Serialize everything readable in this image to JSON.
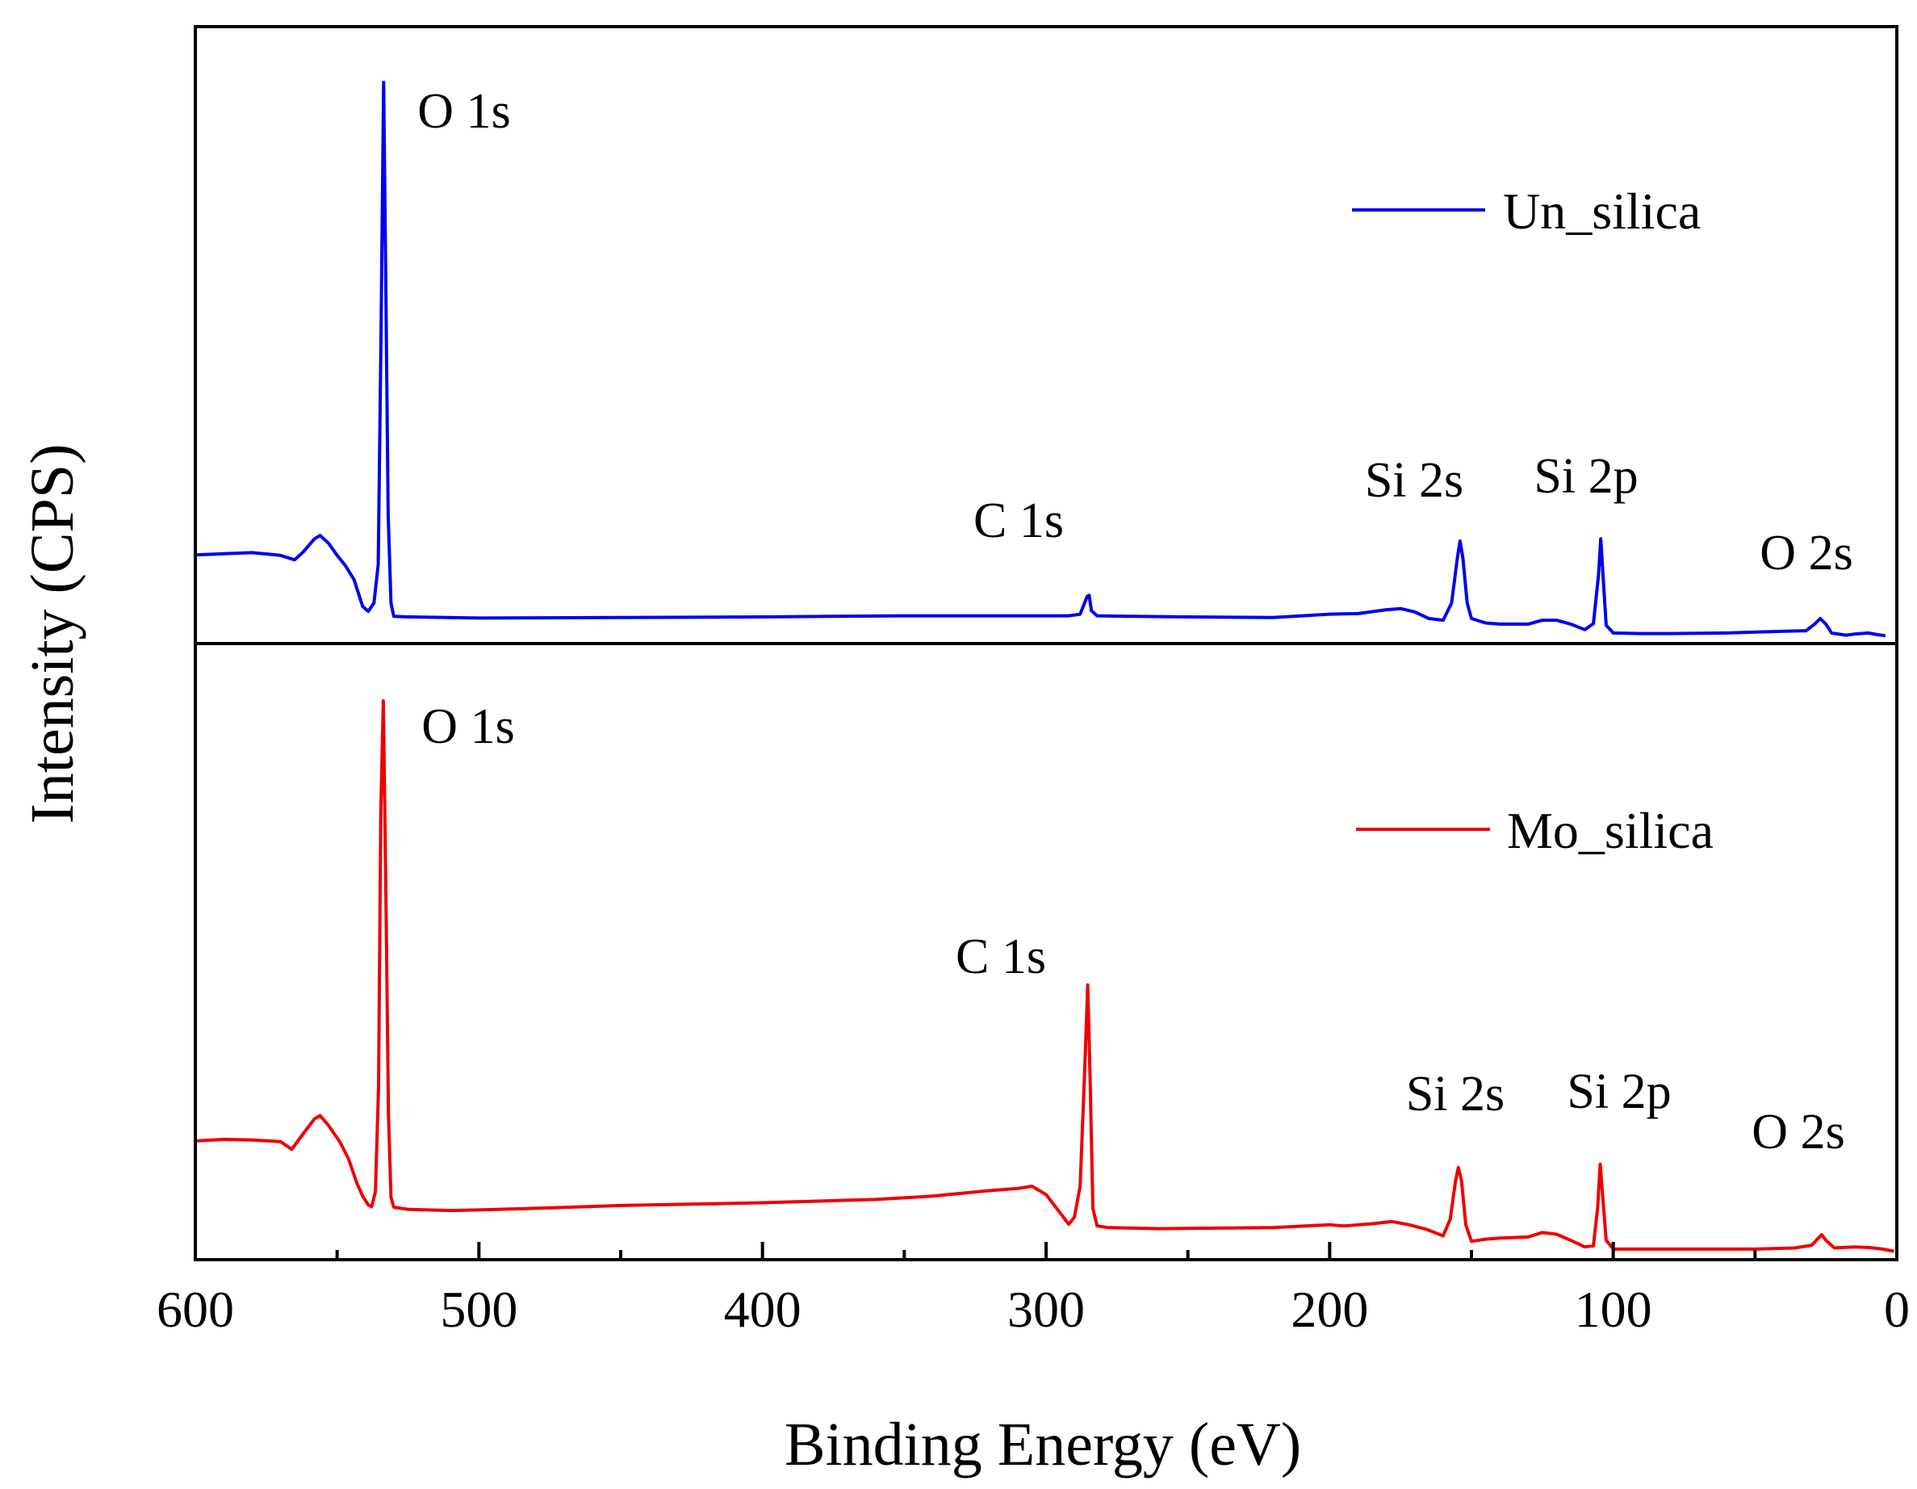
{
  "chart_data": {
    "type": "line",
    "title": "",
    "xlabel": "Binding Energy (eV)",
    "ylabel": "Intensity (CPS)",
    "xlim": [
      600,
      0
    ],
    "x_reversed": true,
    "xticks": [
      600,
      500,
      400,
      300,
      200,
      100,
      0
    ],
    "xtick_labels": [
      "600",
      "500",
      "400",
      "300",
      "200",
      "100",
      "0"
    ],
    "y_ticks_shown": false,
    "grid": false,
    "layout": "stacked-two-panel",
    "series": [
      {
        "name": "Un_silica",
        "color": "#0000ee",
        "panel": "top",
        "ylim": [
          0,
          100
        ],
        "peak_labels": [
          {
            "text": "O 1s",
            "x": 533
          },
          {
            "text": "C 1s",
            "x": 285
          },
          {
            "text": "Si 2s",
            "x": 154
          },
          {
            "text": "Si 2p",
            "x": 103
          },
          {
            "text": "O 2s",
            "x": 26
          }
        ],
        "points": [
          [
            600,
            14.7
          ],
          [
            590,
            14.9
          ],
          [
            580,
            15.1
          ],
          [
            570,
            14.6
          ],
          [
            565,
            13.8
          ],
          [
            562,
            15.2
          ],
          [
            558,
            17.6
          ],
          [
            556,
            18.2
          ],
          [
            553,
            16.8
          ],
          [
            550,
            14.6
          ],
          [
            547,
            12.7
          ],
          [
            544,
            10.2
          ],
          [
            541,
            5.4
          ],
          [
            539,
            4.5
          ],
          [
            537,
            6.0
          ],
          [
            535.5,
            13.0
          ],
          [
            534.5,
            55.0
          ],
          [
            533.6,
            100
          ],
          [
            532.8,
            62.0
          ],
          [
            532,
            22.0
          ],
          [
            531,
            6.0
          ],
          [
            530,
            3.6
          ],
          [
            525,
            3.5
          ],
          [
            500,
            3.3
          ],
          [
            450,
            3.4
          ],
          [
            400,
            3.5
          ],
          [
            350,
            3.7
          ],
          [
            300,
            3.7
          ],
          [
            292,
            3.7
          ],
          [
            288,
            4.0
          ],
          [
            285.5,
            7.2
          ],
          [
            284.8,
            7.4
          ],
          [
            284,
            4.6
          ],
          [
            282,
            3.7
          ],
          [
            270,
            3.6
          ],
          [
            250,
            3.5
          ],
          [
            220,
            3.4
          ],
          [
            200,
            4.0
          ],
          [
            190,
            4.1
          ],
          [
            180,
            4.8
          ],
          [
            175,
            5.0
          ],
          [
            170,
            4.4
          ],
          [
            165,
            3.2
          ],
          [
            160,
            2.9
          ],
          [
            157,
            6.0
          ],
          [
            155,
            14.0
          ],
          [
            154,
            17.2
          ],
          [
            153,
            14.0
          ],
          [
            151.5,
            6.0
          ],
          [
            150,
            3.2
          ],
          [
            145,
            2.4
          ],
          [
            140,
            2.2
          ],
          [
            130,
            2.2
          ],
          [
            125,
            2.9
          ],
          [
            120,
            2.9
          ],
          [
            115,
            2.2
          ],
          [
            110,
            1.2
          ],
          [
            107,
            2.3
          ],
          [
            105.2,
            11.0
          ],
          [
            104.4,
            17.6
          ],
          [
            103.6,
            11.0
          ],
          [
            102.5,
            2.0
          ],
          [
            100,
            0.6
          ],
          [
            90,
            0.5
          ],
          [
            80,
            0.5
          ],
          [
            60,
            0.6
          ],
          [
            40,
            0.9
          ],
          [
            32,
            1.0
          ],
          [
            29,
            2.2
          ],
          [
            27,
            3.2
          ],
          [
            25,
            2.2
          ],
          [
            23,
            0.6
          ],
          [
            18,
            0.2
          ],
          [
            15,
            0.4
          ],
          [
            10,
            0.6
          ],
          [
            7,
            0.3
          ],
          [
            4,
            0.1
          ]
        ]
      },
      {
        "name": "Mo_silica",
        "color": "#ee0000",
        "panel": "bottom",
        "ylim": [
          0,
          100
        ],
        "peak_labels": [
          {
            "text": "O 1s",
            "x": 533
          },
          {
            "text": "C 1s",
            "x": 285
          },
          {
            "text": "Si 2s",
            "x": 154
          },
          {
            "text": "Si 2p",
            "x": 103
          },
          {
            "text": "O 2s",
            "x": 26
          }
        ],
        "points": [
          [
            600,
            20.2
          ],
          [
            590,
            20.5
          ],
          [
            580,
            20.4
          ],
          [
            570,
            20.1
          ],
          [
            566,
            18.7
          ],
          [
            562,
            21.5
          ],
          [
            558,
            24.2
          ],
          [
            556,
            24.8
          ],
          [
            553,
            23.0
          ],
          [
            549,
            20.0
          ],
          [
            546,
            17.0
          ],
          [
            543,
            12.5
          ],
          [
            541,
            10.2
          ],
          [
            539,
            8.6
          ],
          [
            537.8,
            8.3
          ],
          [
            536.5,
            11.0
          ],
          [
            535.4,
            30.0
          ],
          [
            534.6,
            80.0
          ],
          [
            533.7,
            100
          ],
          [
            532.8,
            65.0
          ],
          [
            531.9,
            25.0
          ],
          [
            531,
            10.0
          ],
          [
            530,
            8.2
          ],
          [
            525,
            7.8
          ],
          [
            510,
            7.6
          ],
          [
            500,
            7.7
          ],
          [
            480,
            8.0
          ],
          [
            450,
            8.5
          ],
          [
            420,
            8.8
          ],
          [
            400,
            9.0
          ],
          [
            360,
            9.6
          ],
          [
            340,
            10.2
          ],
          [
            320,
            11.2
          ],
          [
            310,
            11.6
          ],
          [
            305,
            12.0
          ],
          [
            300,
            10.5
          ],
          [
            296,
            7.8
          ],
          [
            292,
            5.1
          ],
          [
            290,
            6.4
          ],
          [
            288,
            12.0
          ],
          [
            286.3,
            34.0
          ],
          [
            285.3,
            48.5
          ],
          [
            284.5,
            32.0
          ],
          [
            283.5,
            8.0
          ],
          [
            282,
            4.8
          ],
          [
            278,
            4.5
          ],
          [
            260,
            4.3
          ],
          [
            240,
            4.4
          ],
          [
            220,
            4.5
          ],
          [
            200,
            5.0
          ],
          [
            195,
            4.8
          ],
          [
            185,
            5.2
          ],
          [
            178,
            5.6
          ],
          [
            172,
            5.0
          ],
          [
            166,
            4.2
          ],
          [
            160,
            3.0
          ],
          [
            157.5,
            6.0
          ],
          [
            155.6,
            13.0
          ],
          [
            154.6,
            15.4
          ],
          [
            153.5,
            13.0
          ],
          [
            152,
            5.0
          ],
          [
            150,
            2.0
          ],
          [
            145,
            2.4
          ],
          [
            140,
            2.6
          ],
          [
            130,
            2.8
          ],
          [
            125,
            3.6
          ],
          [
            120,
            3.3
          ],
          [
            115,
            2.2
          ],
          [
            110,
            1.0
          ],
          [
            107,
            1.2
          ],
          [
            105.5,
            8.0
          ],
          [
            104.6,
            16.0
          ],
          [
            103.7,
            10.0
          ],
          [
            102.5,
            2.2
          ],
          [
            100,
            0.6
          ],
          [
            90,
            0.6
          ],
          [
            70,
            0.6
          ],
          [
            50,
            0.6
          ],
          [
            36,
            0.8
          ],
          [
            30,
            1.3
          ],
          [
            28,
            2.4
          ],
          [
            26.5,
            3.2
          ],
          [
            25,
            2.2
          ],
          [
            22,
            0.8
          ],
          [
            15,
            1.0
          ],
          [
            10,
            0.9
          ],
          [
            5,
            0.6
          ],
          [
            1,
            0.2
          ]
        ]
      }
    ]
  }
}
